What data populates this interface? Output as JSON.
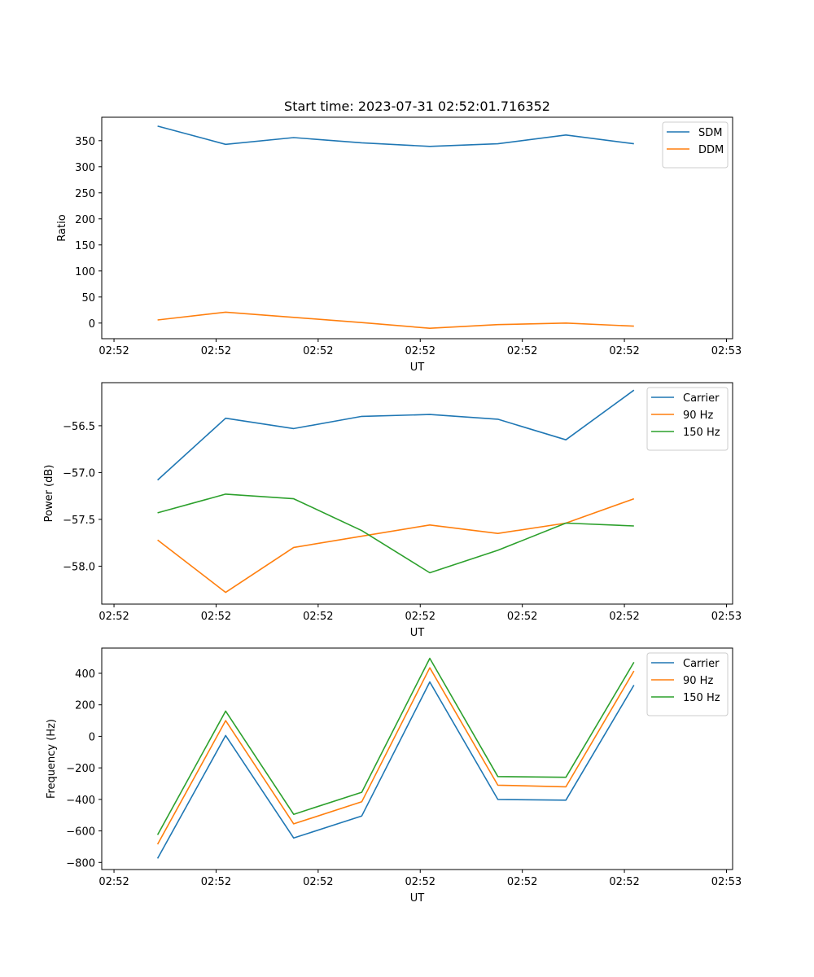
{
  "chart_data": [
    {
      "type": "line",
      "title": "Start time: 2023-07-31 02:52:01.716352",
      "xlabel": "UT",
      "ylabel": "Ratio",
      "x": [
        1,
        2,
        3,
        4,
        5,
        6,
        7,
        8
      ],
      "xlim": [
        0.18,
        9.45
      ],
      "xticks": [
        0.36,
        1.86,
        3.36,
        4.86,
        6.36,
        7.86,
        9.36
      ],
      "xtick_labels": [
        "02:52",
        "02:52",
        "02:52",
        "02:52",
        "02:52",
        "02:52",
        "02:53"
      ],
      "ylim": [
        -30,
        395
      ],
      "yticks": [
        0,
        50,
        100,
        150,
        200,
        250,
        300,
        350
      ],
      "ytick_labels": [
        "0",
        "50",
        "100",
        "150",
        "200",
        "250",
        "300",
        "350"
      ],
      "legend_location": "upper right",
      "series": [
        {
          "name": "SDM",
          "color": "#1f77b4",
          "values": [
            378,
            343,
            356,
            346,
            339,
            344,
            361,
            344
          ]
        },
        {
          "name": "DDM",
          "color": "#ff7f0e",
          "values": [
            6,
            21,
            11,
            1,
            -10,
            -3,
            0,
            -6
          ]
        }
      ]
    },
    {
      "type": "line",
      "title": "",
      "xlabel": "UT",
      "ylabel": "Power (dB)",
      "x": [
        1,
        2,
        3,
        4,
        5,
        6,
        7,
        8
      ],
      "xlim": [
        0.18,
        9.45
      ],
      "xticks": [
        0.36,
        1.86,
        3.36,
        4.86,
        6.36,
        7.86,
        9.36
      ],
      "xtick_labels": [
        "02:52",
        "02:52",
        "02:52",
        "02:52",
        "02:52",
        "02:52",
        "02:53"
      ],
      "ylim": [
        -58.405,
        -56.04
      ],
      "yticks": [
        -58.0,
        -57.5,
        -57.0,
        -56.5
      ],
      "ytick_labels": [
        "−58.0",
        "−57.5",
        "−57.0",
        "−56.5"
      ],
      "legend_location": "upper right",
      "series": [
        {
          "name": "Carrier",
          "color": "#1f77b4",
          "values": [
            -57.08,
            -56.42,
            -56.53,
            -56.4,
            -56.38,
            -56.43,
            -56.65,
            -56.12
          ]
        },
        {
          "name": "90 Hz",
          "color": "#ff7f0e",
          "values": [
            -57.72,
            -58.28,
            -57.8,
            -57.68,
            -57.56,
            -57.65,
            -57.54,
            -57.28
          ]
        },
        {
          "name": "150 Hz",
          "color": "#2ca02c",
          "values": [
            -57.43,
            -57.23,
            -57.28,
            -57.62,
            -58.07,
            -57.83,
            -57.54,
            -57.57
          ]
        }
      ]
    },
    {
      "type": "line",
      "title": "",
      "xlabel": "UT",
      "ylabel": "Frequency (Hz)",
      "x": [
        1,
        2,
        3,
        4,
        5,
        6,
        7,
        8
      ],
      "xlim": [
        0.18,
        9.45
      ],
      "xticks": [
        0.36,
        1.86,
        3.36,
        4.86,
        6.36,
        7.86,
        9.36
      ],
      "xtick_labels": [
        "02:52",
        "02:52",
        "02:52",
        "02:52",
        "02:52",
        "02:52",
        "02:53"
      ],
      "ylim": [
        -845,
        560
      ],
      "yticks": [
        -800,
        -600,
        -400,
        -200,
        0,
        200,
        400
      ],
      "ytick_labels": [
        "−800",
        "−600",
        "−400",
        "−200",
        "0",
        "200",
        "400"
      ],
      "legend_location": "upper right",
      "series": [
        {
          "name": "Carrier",
          "color": "#1f77b4",
          "values": [
            -775,
            5,
            -645,
            -505,
            345,
            -400,
            -405,
            325
          ]
        },
        {
          "name": "90 Hz",
          "color": "#ff7f0e",
          "values": [
            -685,
            100,
            -555,
            -415,
            435,
            -310,
            -320,
            415
          ]
        },
        {
          "name": "150 Hz",
          "color": "#2ca02c",
          "values": [
            -625,
            160,
            -495,
            -355,
            495,
            -255,
            -260,
            470
          ]
        }
      ]
    }
  ]
}
